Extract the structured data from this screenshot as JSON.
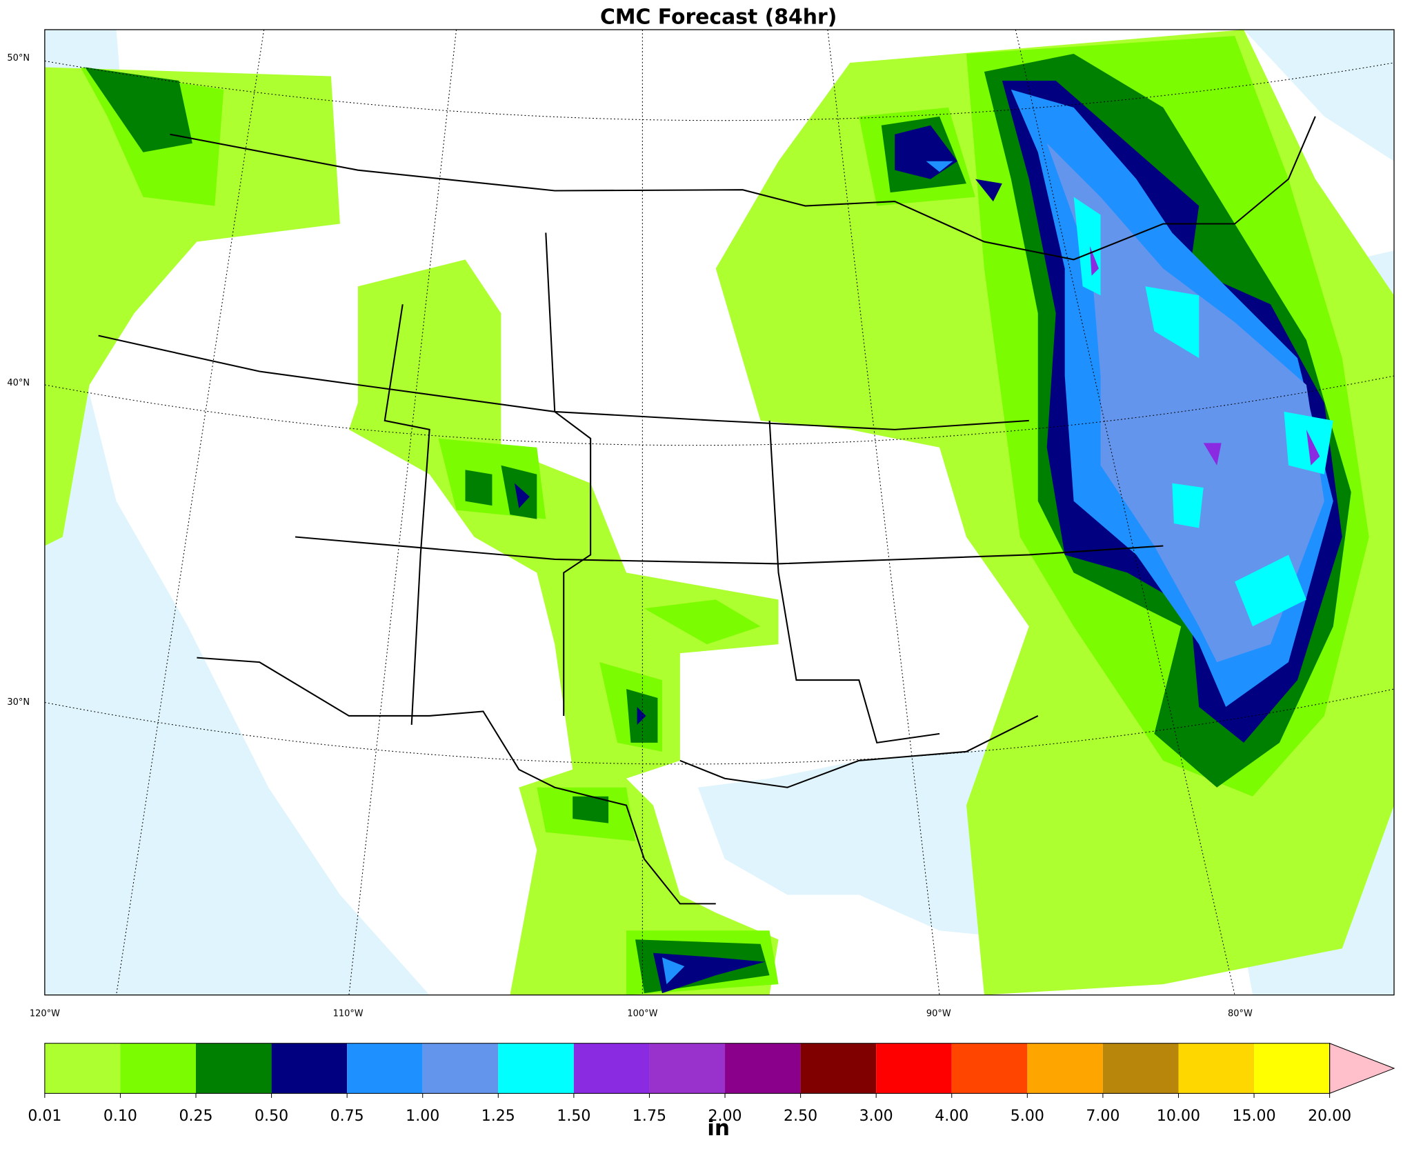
{
  "title": "CMC Forecast (84hr)",
  "map": {
    "lat_labels": [
      "50°N",
      "40°N",
      "30°N"
    ],
    "lon_labels": [
      "120°W",
      "110°W",
      "100°W",
      "90°W",
      "80°W"
    ]
  },
  "colorbar": {
    "levels": [
      0.01,
      {
        "value": 0.1,
        "label": "0.10"
      },
      {
        "value": 0.25,
        "label": "0.25"
      },
      {
        "value": 0.5,
        "label": "0.50"
      },
      {
        "value": 0.75,
        "label": "0.75"
      },
      {
        "value": 1,
        "label": "1.00"
      },
      {
        "value": 1.25,
        "label": "1.25"
      },
      {
        "value": 1.5,
        "label": "1.50"
      },
      {
        "value": 1.75,
        "label": "1.75"
      },
      {
        "value": 2,
        "label": "2.00"
      },
      {
        "value": 2.5,
        "label": "2.50"
      },
      {
        "value": 3,
        "label": "3.00"
      },
      {
        "value": 4,
        "label": "4.00"
      },
      {
        "value": 5,
        "label": "5.00"
      },
      {
        "value": 7,
        "label": "7.00"
      },
      {
        "value": 10,
        "label": "10.00"
      },
      {
        "value": 15,
        "label": "15.00"
      },
      {
        "value": 20,
        "label": "20.00"
      }
    ],
    "colors": [
      "#adff2f",
      "#7cfc00",
      "#008000",
      "#000080",
      "#1e90ff",
      "#6495ed",
      "#00ffff",
      "#8a2be2",
      "#9932cc",
      "#8b008b",
      "#800000",
      "#ff0000",
      "#ff4500",
      "#ffa500",
      "#b8860b",
      "#ffd700",
      "#ffff00"
    ],
    "extend_color": "#ffc0cb",
    "label": "in"
  }
}
